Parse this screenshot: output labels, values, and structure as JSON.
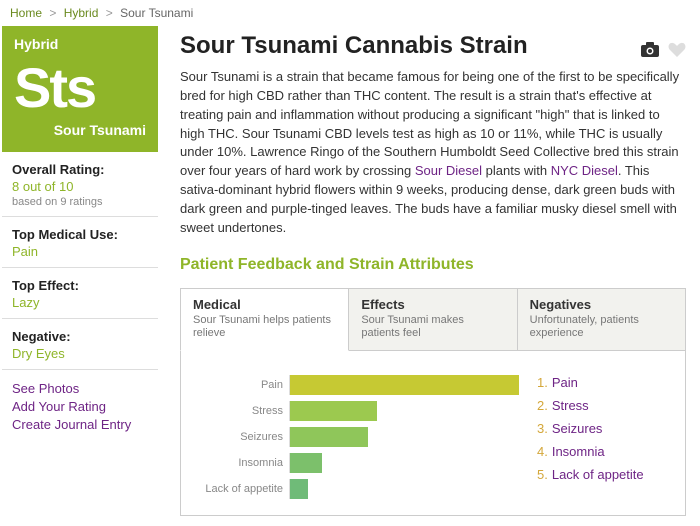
{
  "breadcrumb": {
    "home": "Home",
    "cat": "Hybrid",
    "name": "Sour Tsunami"
  },
  "badge": {
    "type": "Hybrid",
    "abbr": "Sts",
    "name": "Sour Tsunami"
  },
  "stats": {
    "overall_label": "Overall Rating:",
    "overall_value": "8 out of 10",
    "overall_sub": "based on 9 ratings",
    "medical_label": "Top Medical Use:",
    "medical_value": "Pain",
    "effect_label": "Top Effect:",
    "effect_value": "Lazy",
    "negative_label": "Negative:",
    "negative_value": "Dry Eyes"
  },
  "links": {
    "photos": "See Photos",
    "rating": "Add Your Rating",
    "journal": "Create Journal Entry"
  },
  "title": "Sour Tsunami Cannabis Strain",
  "desc_1": "Sour Tsunami is a strain that became famous for being one of the first to be specifically bred for high CBD rather than THC content. The result is a strain that's effective at treating pain and inflammation without producing a significant \"high\" that is linked to high THC. Sour Tsunami CBD levels test as high as 10 or 11%, while THC is usually under 10%. Lawrence Ringo of the Southern Humboldt Seed Collective bred this strain over four years of hard work by crossing ",
  "desc_link1": "Sour Diesel",
  "desc_2": " plants with ",
  "desc_link2": "NYC Diesel",
  "desc_3": ". This sativa-dominant hybrid flowers within 9 weeks, producing dense, dark green buds with dark green and purple-tinged leaves. The buds have a familiar musky diesel smell with sweet undertones.",
  "feedback_heading": "Patient Feedback and Strain Attributes",
  "tabs": {
    "medical": {
      "title": "Medical",
      "sub": "Sour Tsunami helps patients relieve"
    },
    "effects": {
      "title": "Effects",
      "sub": "Sour Tsunami makes patients feel"
    },
    "negatives": {
      "title": "Negatives",
      "sub": "Unfortunately, patients experience"
    }
  },
  "chart": {
    "rows": [
      {
        "label": "Pain",
        "pct": 100,
        "color": "#c6c933"
      },
      {
        "label": "Stress",
        "pct": 38,
        "color": "#9cc94f"
      },
      {
        "label": "Seizures",
        "pct": 34,
        "color": "#8fc65a"
      },
      {
        "label": "Insomnia",
        "pct": 14,
        "color": "#7cc06b"
      },
      {
        "label": "Lack of appetite",
        "pct": 8,
        "color": "#6fbb78"
      }
    ]
  },
  "legend": [
    "Pain",
    "Stress",
    "Seizures",
    "Insomnia",
    "Lack of appetite"
  ]
}
